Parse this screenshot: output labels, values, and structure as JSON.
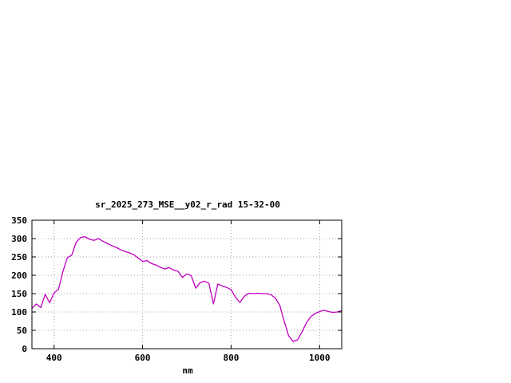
{
  "chart": {
    "title": "sr_2025_273_MSE__y02_r_rad 15-32-00",
    "xlabel": "nm"
  },
  "chart_data": {
    "type": "line",
    "title": "sr_2025_273_MSE__y02_r_rad 15-32-00",
    "xlabel": "nm",
    "ylabel": "",
    "x": [
      350,
      360,
      370,
      380,
      390,
      400,
      410,
      420,
      430,
      440,
      450,
      460,
      470,
      480,
      490,
      500,
      510,
      520,
      530,
      540,
      550,
      560,
      570,
      580,
      590,
      600,
      610,
      620,
      630,
      640,
      650,
      660,
      670,
      680,
      690,
      700,
      710,
      720,
      730,
      740,
      750,
      760,
      770,
      780,
      790,
      800,
      810,
      820,
      830,
      840,
      850,
      860,
      870,
      880,
      890,
      900,
      910,
      920,
      930,
      940,
      950,
      960,
      970,
      980,
      990,
      1000,
      1010,
      1020,
      1030,
      1040,
      1050
    ],
    "values": [
      110,
      122,
      112,
      148,
      125,
      152,
      162,
      210,
      248,
      255,
      290,
      303,
      305,
      298,
      295,
      300,
      293,
      287,
      281,
      276,
      270,
      265,
      261,
      256,
      247,
      238,
      240,
      232,
      228,
      222,
      217,
      221,
      214,
      211,
      194,
      204,
      199,
      165,
      180,
      184,
      178,
      122,
      176,
      171,
      167,
      161,
      140,
      126,
      143,
      151,
      150,
      151,
      150,
      150,
      147,
      138,
      118,
      75,
      35,
      20,
      24,
      45,
      70,
      87,
      96,
      101,
      105,
      101,
      99,
      100,
      104
    ],
    "xlim": [
      350,
      1050
    ],
    "ylim": [
      0,
      350
    ],
    "xticks": [
      400,
      600,
      800,
      1000
    ],
    "yticks": [
      0,
      50,
      100,
      150,
      200,
      250,
      300,
      350
    ],
    "grid": true,
    "legend_position": "none",
    "line_color": "#c000c0",
    "border_color": "#000000",
    "grid_color": "#a0a0a0"
  }
}
